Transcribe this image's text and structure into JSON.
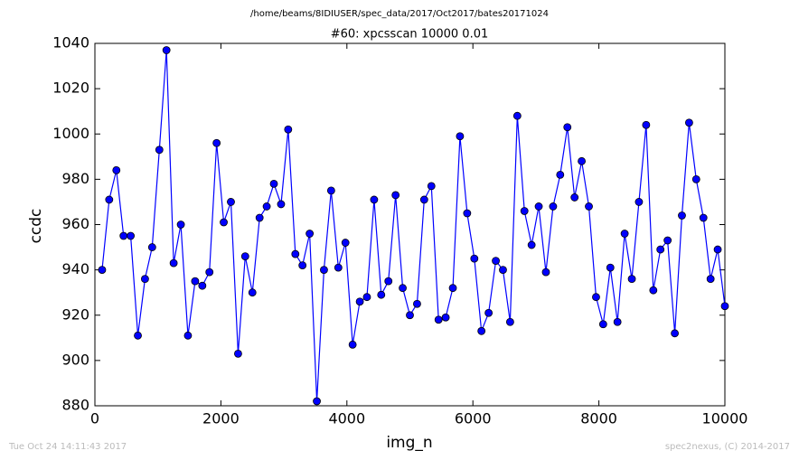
{
  "chart_data": {
    "type": "line",
    "title": "/home/beams/8IDIUSER/spec_data/2017/Oct2017/bates20171024",
    "subtitle": "#60: xpcsscan 10000 0.01",
    "x_label": "img_n",
    "y_label": "ccdc",
    "footer_left": "Tue Oct 24 14:11:43 2017",
    "footer_right": "spec2nexus, (C) 2014-2017",
    "x": [
      114,
      227,
      341,
      455,
      568,
      682,
      795,
      909,
      1023,
      1136,
      1250,
      1364,
      1477,
      1591,
      1705,
      1818,
      1932,
      2045,
      2159,
      2273,
      2386,
      2500,
      2614,
      2727,
      2841,
      2955,
      3068,
      3182,
      3295,
      3409,
      3523,
      3636,
      3750,
      3864,
      3977,
      4091,
      4205,
      4318,
      4432,
      4545,
      4659,
      4773,
      4886,
      5000,
      5114,
      5227,
      5341,
      5455,
      5568,
      5682,
      5795,
      5909,
      6023,
      6136,
      6250,
      6364,
      6477,
      6591,
      6705,
      6818,
      6932,
      7045,
      7159,
      7273,
      7386,
      7500,
      7614,
      7727,
      7841,
      7955,
      8068,
      8182,
      8295,
      8409,
      8523,
      8636,
      8750,
      8864,
      8977,
      9091,
      9205,
      9318,
      9432,
      9545,
      9659,
      9773,
      9886,
      10000
    ],
    "series": [
      {
        "name": "ccdc",
        "color": "#0000ff",
        "values": [
          940,
          971,
          984,
          955,
          955,
          911,
          936,
          950,
          993,
          1037,
          943,
          960,
          911,
          935,
          933,
          939,
          996,
          961,
          970,
          903,
          946,
          930,
          963,
          968,
          978,
          969,
          1002,
          947,
          942,
          956,
          882,
          940,
          975,
          941,
          952,
          907,
          926,
          928,
          971,
          929,
          935,
          973,
          932,
          920,
          925,
          971,
          977,
          918,
          919,
          932,
          999,
          965,
          945,
          913,
          921,
          944,
          940,
          917,
          1008,
          966,
          951,
          968,
          939,
          968,
          982,
          1003,
          972,
          988,
          968,
          928,
          916,
          941,
          917,
          956,
          936,
          970,
          1004,
          931,
          949,
          953,
          912,
          964,
          1005,
          980,
          963,
          936,
          949,
          924
        ]
      }
    ],
    "xlim": [
      0,
      10000
    ],
    "xticks": [
      0,
      2000,
      4000,
      6000,
      8000,
      10000
    ],
    "ylim": [
      880,
      1040
    ],
    "yticks": [
      880,
      900,
      920,
      940,
      960,
      980,
      1000,
      1020,
      1040
    ],
    "grid": false
  }
}
